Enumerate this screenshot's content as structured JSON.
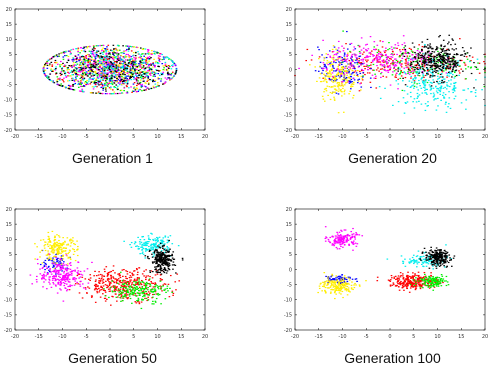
{
  "chart_data": [
    {
      "type": "scatter",
      "title": "Generation 1",
      "xlim": [
        -20,
        20
      ],
      "ylim": [
        -20,
        20
      ],
      "xticks": [
        -20,
        -15,
        -10,
        -5,
        0,
        5,
        10,
        15,
        20
      ],
      "yticks": [
        -20,
        -15,
        -10,
        -5,
        0,
        5,
        10,
        15,
        20
      ],
      "grid": false,
      "series": [
        {
          "color": "#ff0000",
          "clusters": [
            {
              "cx": 0,
              "cy": 0,
              "sx": 7,
              "sy": 4,
              "n": 260
            }
          ]
        },
        {
          "color": "#00ee00",
          "clusters": [
            {
              "cx": 0,
              "cy": 0,
              "sx": 7,
              "sy": 4,
              "n": 260
            }
          ]
        },
        {
          "color": "#0000ff",
          "clusters": [
            {
              "cx": 0,
              "cy": 0,
              "sx": 7,
              "sy": 4,
              "n": 260
            }
          ]
        },
        {
          "color": "#ffee00",
          "clusters": [
            {
              "cx": 0,
              "cy": 0,
              "sx": 7,
              "sy": 4,
              "n": 260
            }
          ]
        },
        {
          "color": "#ff00ff",
          "clusters": [
            {
              "cx": 0,
              "cy": 0,
              "sx": 7,
              "sy": 4,
              "n": 260
            }
          ]
        },
        {
          "color": "#00eeee",
          "clusters": [
            {
              "cx": 0,
              "cy": 0,
              "sx": 7,
              "sy": 4,
              "n": 260
            }
          ]
        },
        {
          "color": "#000000",
          "clusters": [
            {
              "cx": 0,
              "cy": 0,
              "sx": 7,
              "sy": 4,
              "n": 260
            }
          ]
        }
      ]
    },
    {
      "type": "scatter",
      "title": "Generation 20",
      "xlim": [
        -20,
        20
      ],
      "ylim": [
        -20,
        20
      ],
      "xticks": [
        -20,
        -15,
        -10,
        -5,
        0,
        5,
        10,
        15,
        20
      ],
      "yticks": [
        -20,
        -15,
        -10,
        -5,
        0,
        5,
        10,
        15,
        20
      ],
      "grid": false,
      "series": [
        {
          "color": "#ff0000",
          "clusters": [
            {
              "cx": 2,
              "cy": 2,
              "sx": 8,
              "sy": 3,
              "n": 240
            }
          ]
        },
        {
          "color": "#00ee00",
          "clusters": [
            {
              "cx": 4,
              "cy": 2,
              "sx": 7,
              "sy": 3,
              "n": 160
            }
          ]
        },
        {
          "color": "#0000ff",
          "clusters": [
            {
              "cx": -10,
              "cy": 0,
              "sx": 2.5,
              "sy": 3.5,
              "n": 150
            }
          ]
        },
        {
          "color": "#ffee00",
          "clusters": [
            {
              "cx": -11,
              "cy": -2,
              "sx": 2,
              "sy": 4,
              "n": 220
            }
          ]
        },
        {
          "color": "#ff00ff",
          "clusters": [
            {
              "cx": -2,
              "cy": 3,
              "sx": 6,
              "sy": 3,
              "n": 260
            }
          ]
        },
        {
          "color": "#00eeee",
          "clusters": [
            {
              "cx": 9,
              "cy": -5,
              "sx": 4,
              "sy": 4,
              "n": 260
            }
          ]
        },
        {
          "color": "#000000",
          "clusters": [
            {
              "cx": 10,
              "cy": 3,
              "sx": 3,
              "sy": 3,
              "n": 360
            }
          ]
        }
      ]
    },
    {
      "type": "scatter",
      "title": "Generation 50",
      "xlim": [
        -20,
        20
      ],
      "ylim": [
        -20,
        20
      ],
      "xticks": [
        -20,
        -15,
        -10,
        -5,
        0,
        5,
        10,
        15,
        20
      ],
      "yticks": [
        -20,
        -15,
        -10,
        -5,
        0,
        5,
        10,
        15,
        20
      ],
      "grid": false,
      "series": [
        {
          "color": "#ff0000",
          "clusters": [
            {
              "cx": 3,
              "cy": -5,
              "sx": 4.5,
              "sy": 2.5,
              "n": 380
            }
          ]
        },
        {
          "color": "#00ee00",
          "clusters": [
            {
              "cx": 6,
              "cy": -7,
              "sx": 3,
              "sy": 2,
              "n": 200
            }
          ]
        },
        {
          "color": "#0000ff",
          "clusters": [
            {
              "cx": -12,
              "cy": 2,
              "sx": 1.5,
              "sy": 1.5,
              "n": 70
            }
          ]
        },
        {
          "color": "#ffee00",
          "clusters": [
            {
              "cx": -11,
              "cy": 7,
              "sx": 2,
              "sy": 2,
              "n": 200
            }
          ]
        },
        {
          "color": "#ff00ff",
          "clusters": [
            {
              "cx": -10,
              "cy": -2,
              "sx": 2.5,
              "sy": 2.5,
              "n": 240
            }
          ]
        },
        {
          "color": "#00eeee",
          "clusters": [
            {
              "cx": 9,
              "cy": 8,
              "sx": 2,
              "sy": 1.5,
              "n": 160
            }
          ]
        },
        {
          "color": "#000000",
          "clusters": [
            {
              "cx": 11,
              "cy": 3,
              "sx": 1.2,
              "sy": 2,
              "n": 280
            }
          ]
        }
      ]
    },
    {
      "type": "scatter",
      "title": "Generation 100",
      "xlim": [
        -20,
        20
      ],
      "ylim": [
        -20,
        20
      ],
      "xticks": [
        -20,
        -15,
        -10,
        -5,
        0,
        5,
        10,
        15,
        20
      ],
      "yticks": [
        -20,
        -15,
        -10,
        -5,
        0,
        5,
        10,
        15,
        20
      ],
      "grid": false,
      "series": [
        {
          "color": "#ff0000",
          "clusters": [
            {
              "cx": 5,
              "cy": -4,
              "sx": 2.5,
              "sy": 1.2,
              "n": 280
            }
          ]
        },
        {
          "color": "#00ee00",
          "clusters": [
            {
              "cx": 9,
              "cy": -4,
              "sx": 1.5,
              "sy": 1,
              "n": 130
            }
          ]
        },
        {
          "color": "#0000ff",
          "clusters": [
            {
              "cx": -11,
              "cy": -3,
              "sx": 1.5,
              "sy": 0.8,
              "n": 70
            }
          ]
        },
        {
          "color": "#ffee00",
          "clusters": [
            {
              "cx": -11,
              "cy": -5.5,
              "sx": 1.8,
              "sy": 1.5,
              "n": 180
            }
          ]
        },
        {
          "color": "#ff00ff",
          "clusters": [
            {
              "cx": -10,
              "cy": 10,
              "sx": 1.5,
              "sy": 1.3,
              "n": 160
            }
          ]
        },
        {
          "color": "#00eeee",
          "clusters": [
            {
              "cx": 7,
              "cy": 3,
              "sx": 2.5,
              "sy": 1.2,
              "n": 100
            }
          ]
        },
        {
          "color": "#000000",
          "clusters": [
            {
              "cx": 10,
              "cy": 4,
              "sx": 1.3,
              "sy": 1.3,
              "n": 240
            }
          ]
        }
      ]
    }
  ]
}
